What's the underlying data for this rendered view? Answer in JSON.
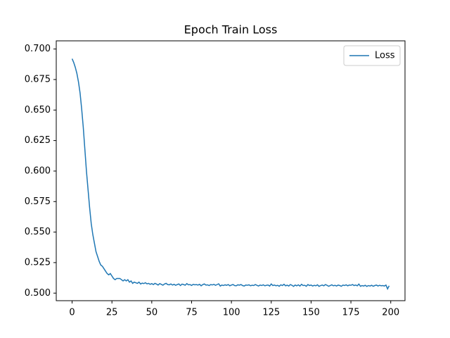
{
  "chart_data": {
    "type": "line",
    "title": "Epoch Train Loss",
    "x": [
      0,
      1,
      2,
      3,
      4,
      5,
      6,
      7,
      8,
      9,
      10,
      11,
      12,
      13,
      14,
      15,
      16,
      17,
      18,
      19,
      20,
      21,
      22,
      23,
      24,
      25,
      26,
      27,
      28,
      29,
      30,
      31,
      32,
      33,
      34,
      35,
      36,
      37,
      38,
      39,
      40,
      41,
      42,
      43,
      44,
      45,
      46,
      47,
      48,
      49,
      50,
      51,
      52,
      53,
      54,
      55,
      56,
      57,
      58,
      59,
      60,
      61,
      62,
      63,
      64,
      65,
      66,
      67,
      68,
      69,
      70,
      71,
      72,
      73,
      74,
      75,
      76,
      77,
      78,
      79,
      80,
      81,
      82,
      83,
      84,
      85,
      86,
      87,
      88,
      89,
      90,
      91,
      92,
      93,
      94,
      95,
      96,
      97,
      98,
      99,
      100,
      101,
      102,
      103,
      104,
      105,
      106,
      107,
      108,
      109,
      110,
      111,
      112,
      113,
      114,
      115,
      116,
      117,
      118,
      119,
      120,
      121,
      122,
      123,
      124,
      125,
      126,
      127,
      128,
      129,
      130,
      131,
      132,
      133,
      134,
      135,
      136,
      137,
      138,
      139,
      140,
      141,
      142,
      143,
      144,
      145,
      146,
      147,
      148,
      149,
      150,
      151,
      152,
      153,
      154,
      155,
      156,
      157,
      158,
      159,
      160,
      161,
      162,
      163,
      164,
      165,
      166,
      167,
      168,
      169,
      170,
      171,
      172,
      173,
      174,
      175,
      176,
      177,
      178,
      179,
      180,
      181,
      182,
      183,
      184,
      185,
      186,
      187,
      188,
      189,
      190,
      191,
      192,
      193,
      194,
      195,
      196,
      197,
      198,
      199
    ],
    "series": [
      {
        "name": "Loss",
        "color": "#1f77b4",
        "values": [
          0.692,
          0.689,
          0.685,
          0.68,
          0.673,
          0.664,
          0.651,
          0.636,
          0.618,
          0.6,
          0.585,
          0.57,
          0.557,
          0.548,
          0.541,
          0.534,
          0.53,
          0.526,
          0.523,
          0.522,
          0.52,
          0.518,
          0.516,
          0.515,
          0.516,
          0.514,
          0.512,
          0.511,
          0.512,
          0.512,
          0.512,
          0.511,
          0.51,
          0.511,
          0.51,
          0.511,
          0.509,
          0.51,
          0.508,
          0.509,
          0.5085,
          0.508,
          0.509,
          0.5075,
          0.5082,
          0.5078,
          0.5085,
          0.5076,
          0.508,
          0.5072,
          0.5078,
          0.507,
          0.508,
          0.5074,
          0.5066,
          0.5078,
          0.5072,
          0.5065,
          0.5075,
          0.508,
          0.507,
          0.5068,
          0.5075,
          0.5066,
          0.5072,
          0.5064,
          0.507,
          0.5075,
          0.5062,
          0.5074,
          0.507,
          0.5065,
          0.5078,
          0.5068,
          0.507,
          0.5063,
          0.5072,
          0.5068,
          0.507,
          0.5066,
          0.5072,
          0.506,
          0.507,
          0.5075,
          0.5066,
          0.5068,
          0.5062,
          0.507,
          0.5067,
          0.5072,
          0.5064,
          0.507,
          0.5076,
          0.5058,
          0.5066,
          0.5062,
          0.5068,
          0.5064,
          0.507,
          0.506,
          0.5066,
          0.507,
          0.5062,
          0.506,
          0.5068,
          0.5065,
          0.507,
          0.5062,
          0.5058,
          0.5066,
          0.5064,
          0.5068,
          0.506,
          0.5065,
          0.5062,
          0.507,
          0.5064,
          0.5058,
          0.5066,
          0.5062,
          0.5068,
          0.506,
          0.5064,
          0.5066,
          0.5058,
          0.5075,
          0.5062,
          0.5066,
          0.506,
          0.5064,
          0.5056,
          0.5068,
          0.5062,
          0.5072,
          0.506,
          0.5065,
          0.5058,
          0.507,
          0.5064,
          0.5055,
          0.5066,
          0.506,
          0.5068,
          0.5058,
          0.5072,
          0.5062,
          0.5064,
          0.5056,
          0.507,
          0.5062,
          0.5066,
          0.5058,
          0.5064,
          0.506,
          0.5068,
          0.5055,
          0.5062,
          0.5066,
          0.506,
          0.507,
          0.5064,
          0.5056,
          0.5062,
          0.5068,
          0.506,
          0.5064,
          0.5058,
          0.5066,
          0.5062,
          0.5056,
          0.5066,
          0.5062,
          0.5068,
          0.506,
          0.5066,
          0.5064,
          0.507,
          0.5062,
          0.5066,
          0.506,
          0.5074,
          0.5056,
          0.5062,
          0.5058,
          0.5064,
          0.5055,
          0.5062,
          0.5058,
          0.5064,
          0.5056,
          0.5062,
          0.5066,
          0.5058,
          0.5064,
          0.506,
          0.5062,
          0.5058,
          0.5066,
          0.5035,
          0.506
        ]
      }
    ],
    "xlim": [
      -9.95,
      208.95
    ],
    "xticks": [
      0,
      25,
      50,
      75,
      100,
      125,
      150,
      175,
      200
    ],
    "ylim": [
      0.4938,
      0.7067
    ],
    "yticks": [
      {
        "value": 0.5,
        "label": "0.500"
      },
      {
        "value": 0.525,
        "label": "0.525"
      },
      {
        "value": 0.55,
        "label": "0.550"
      },
      {
        "value": 0.575,
        "label": "0.575"
      },
      {
        "value": 0.6,
        "label": "0.600"
      },
      {
        "value": 0.625,
        "label": "0.625"
      },
      {
        "value": 0.65,
        "label": "0.650"
      },
      {
        "value": 0.675,
        "label": "0.675"
      },
      {
        "value": 0.7,
        "label": "0.700"
      }
    ],
    "grid": false,
    "legend": "upper-right"
  }
}
